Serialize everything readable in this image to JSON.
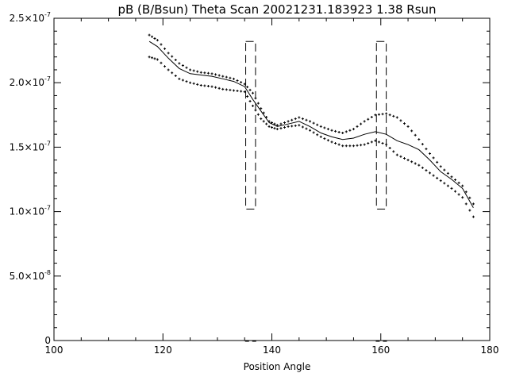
{
  "chart_data": {
    "type": "scatter",
    "title": "pB (B/Bsun) Theta Scan 20021231.183923 1.38 Rsun",
    "xlabel": "Position Angle",
    "ylabel": "",
    "xlim": [
      100,
      180
    ],
    "ylim": [
      0,
      2.5e-07
    ],
    "grid": false,
    "legend": "none",
    "x_ticks": [
      {
        "value": 100,
        "label": "100"
      },
      {
        "value": 120,
        "label": "120"
      },
      {
        "value": 140,
        "label": "140"
      },
      {
        "value": 160,
        "label": "160"
      },
      {
        "value": 180,
        "label": "180"
      }
    ],
    "y_ticks": [
      {
        "value": 0,
        "mant": "0",
        "exp": ""
      },
      {
        "value": 5e-08,
        "mant": "5.0×10",
        "exp": "-8"
      },
      {
        "value": 1e-07,
        "mant": "1.0×10",
        "exp": "-7"
      },
      {
        "value": 1.5e-07,
        "mant": "1.5×10",
        "exp": "-7"
      },
      {
        "value": 2e-07,
        "mant": "2.0×10",
        "exp": "-7"
      },
      {
        "value": 2.5e-07,
        "mant": "2.5×10",
        "exp": "-7"
      }
    ],
    "series": [
      {
        "style": "line",
        "x": [
          117.5,
          119,
          121,
          123,
          125,
          127,
          129,
          131,
          133,
          135,
          136.5,
          138,
          139.5,
          141,
          143,
          145,
          147,
          149,
          151,
          153,
          155,
          157,
          159,
          161,
          163,
          165,
          167,
          169,
          171,
          173,
          175,
          177
        ],
        "values": [
          2.32e-07,
          2.28e-07,
          2.19e-07,
          2.11e-07,
          2.07e-07,
          2.06e-07,
          2.05e-07,
          2.03e-07,
          2.01e-07,
          1.97e-07,
          1.87e-07,
          1.78e-07,
          1.69e-07,
          1.66e-07,
          1.68e-07,
          1.7e-07,
          1.66e-07,
          1.61e-07,
          1.58e-07,
          1.56e-07,
          1.57e-07,
          1.6e-07,
          1.62e-07,
          1.6e-07,
          1.55e-07,
          1.52e-07,
          1.48e-07,
          1.4e-07,
          1.31e-07,
          1.25e-07,
          1.18e-07,
          1.03e-07
        ]
      },
      {
        "style": "markers",
        "x": [
          117.5,
          119,
          121,
          123,
          125,
          127,
          129,
          131,
          133,
          135,
          136.5,
          138,
          139.5,
          141,
          143,
          145,
          147,
          149,
          151,
          153,
          155,
          157,
          159,
          161,
          163,
          165,
          167,
          169,
          171,
          173,
          175,
          177
        ],
        "values": [
          2.37e-07,
          2.33e-07,
          2.23e-07,
          2.15e-07,
          2.1e-07,
          2.08e-07,
          2.07e-07,
          2.05e-07,
          2.03e-07,
          1.99e-07,
          1.92e-07,
          1.8e-07,
          1.7e-07,
          1.67e-07,
          1.7e-07,
          1.73e-07,
          1.7e-07,
          1.66e-07,
          1.63e-07,
          1.61e-07,
          1.64e-07,
          1.7e-07,
          1.75e-07,
          1.76e-07,
          1.73e-07,
          1.66e-07,
          1.56e-07,
          1.45e-07,
          1.35e-07,
          1.27e-07,
          1.2e-07,
          1.06e-07
        ]
      },
      {
        "style": "markers",
        "x": [
          117.5,
          119,
          121,
          123,
          125,
          127,
          129,
          131,
          133,
          135,
          136.5,
          138,
          139.5,
          141,
          143,
          145,
          147,
          149,
          151,
          153,
          155,
          157,
          159,
          161,
          163,
          165,
          167,
          169,
          171,
          173,
          175,
          177
        ],
        "values": [
          2.2e-07,
          2.18e-07,
          2.1e-07,
          2.03e-07,
          2e-07,
          1.98e-07,
          1.97e-07,
          1.95e-07,
          1.94e-07,
          1.93e-07,
          1.82e-07,
          1.72e-07,
          1.66e-07,
          1.64e-07,
          1.66e-07,
          1.67e-07,
          1.63e-07,
          1.58e-07,
          1.54e-07,
          1.51e-07,
          1.51e-07,
          1.52e-07,
          1.55e-07,
          1.52e-07,
          1.44e-07,
          1.4e-07,
          1.36e-07,
          1.3e-07,
          1.24e-07,
          1.18e-07,
          1.11e-07,
          9.6e-08
        ]
      }
    ],
    "boxes": [
      {
        "x0": 135.2,
        "x1": 137,
        "y0": 1.02e-07,
        "y1": 2.32e-07
      },
      {
        "x0": 159.2,
        "x1": 161,
        "y0": 1.02e-07,
        "y1": 2.32e-07
      }
    ]
  }
}
